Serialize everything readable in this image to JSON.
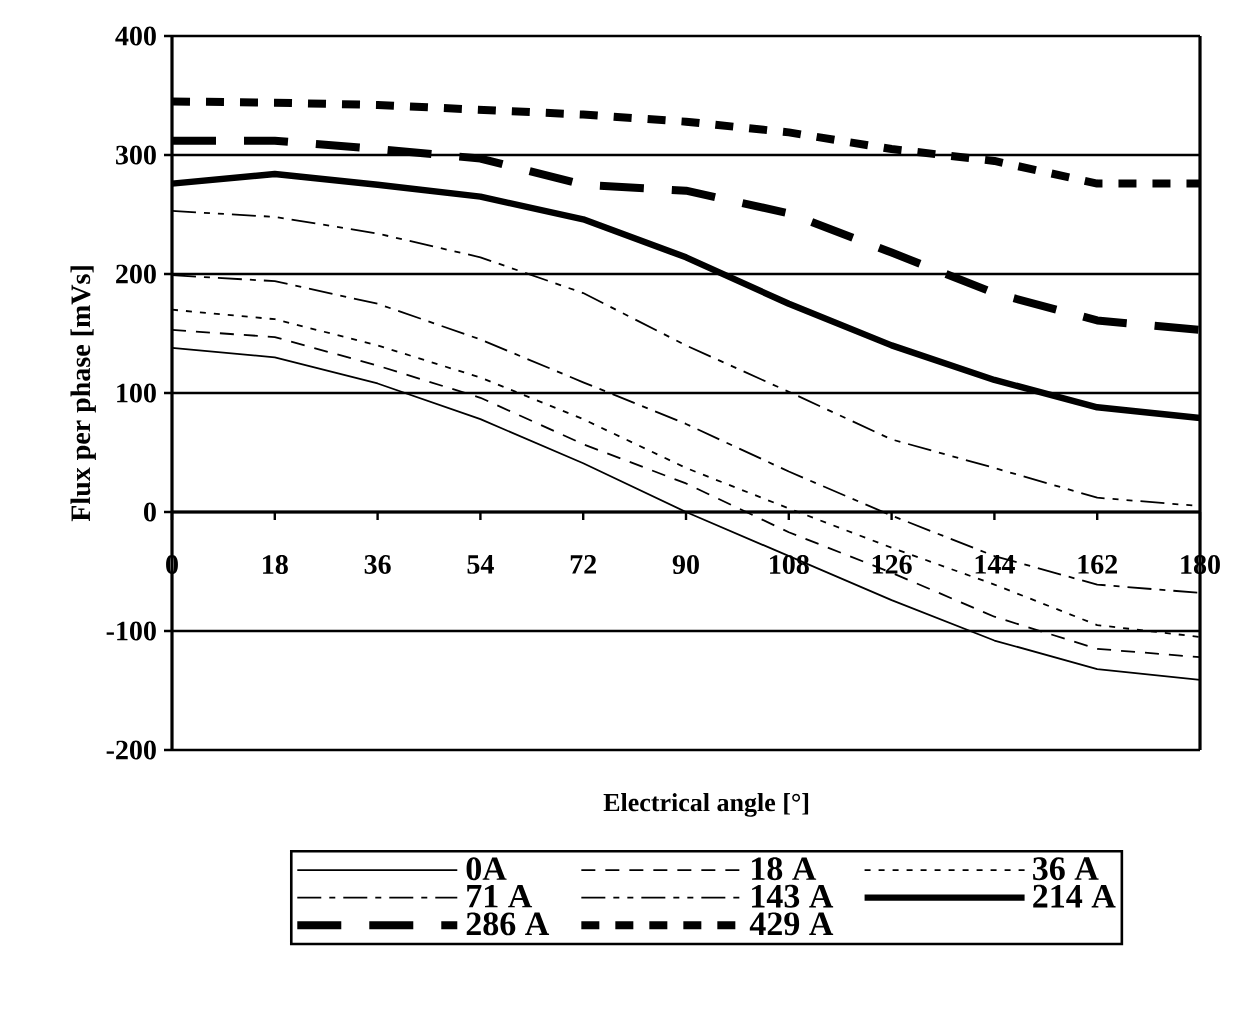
{
  "chart_data": {
    "type": "line",
    "xlabel": "Electrical angle [°]",
    "ylabel": "Flux per phase [mVs]",
    "x": [
      0,
      18,
      36,
      54,
      72,
      90,
      108,
      126,
      144,
      162,
      180
    ],
    "xlim": [
      0,
      180
    ],
    "xticks": [
      0,
      18,
      36,
      54,
      72,
      90,
      108,
      126,
      144,
      162,
      180
    ],
    "ylim": [
      -200,
      400
    ],
    "yticks": [
      -200,
      -100,
      0,
      100,
      200,
      300,
      400
    ],
    "grid": "y",
    "legend": "bottom",
    "marker": "none",
    "series": [
      {
        "name": "0A",
        "color": "#000000",
        "line_style": "solid",
        "values": [
          138,
          130,
          108,
          78,
          41,
          0,
          -37,
          -74,
          -108,
          -132,
          -141
        ]
      },
      {
        "name": "18 A",
        "color": "#000000",
        "line_style": "dashed",
        "values": [
          153,
          147,
          123,
          96,
          57,
          24,
          -17,
          -51,
          -88,
          -115,
          -122
        ]
      },
      {
        "name": "36 A",
        "color": "#000000",
        "line_style": "dotted",
        "values": [
          170,
          162,
          140,
          113,
          78,
          37,
          3,
          -30,
          -61,
          -95,
          -105
        ]
      },
      {
        "name": "71 A",
        "color": "#000000",
        "line_style": "dashdot",
        "values": [
          199,
          194,
          175,
          145,
          109,
          74,
          34,
          -3,
          -37,
          -61,
          -68
        ]
      },
      {
        "name": "143 A",
        "color": "#000000",
        "line_style": "dashdotdot",
        "values": [
          253,
          248,
          234,
          214,
          184,
          140,
          101,
          61,
          37,
          12,
          5
        ]
      },
      {
        "name": "214 A",
        "color": "#000000",
        "line_style": "solid",
        "values": [
          276,
          284,
          275,
          265,
          246,
          214,
          175,
          140,
          111,
          88,
          79
        ]
      },
      {
        "name": "286 A",
        "color": "#000000",
        "line_style": "dashed",
        "values": [
          312,
          312,
          305,
          297,
          275,
          270,
          251,
          218,
          184,
          161,
          153
        ]
      },
      {
        "name": "429 A",
        "color": "#000000",
        "line_style": "dotted",
        "values": [
          345,
          344,
          342,
          338,
          334,
          328,
          319,
          305,
          295,
          276,
          276
        ]
      }
    ]
  }
}
